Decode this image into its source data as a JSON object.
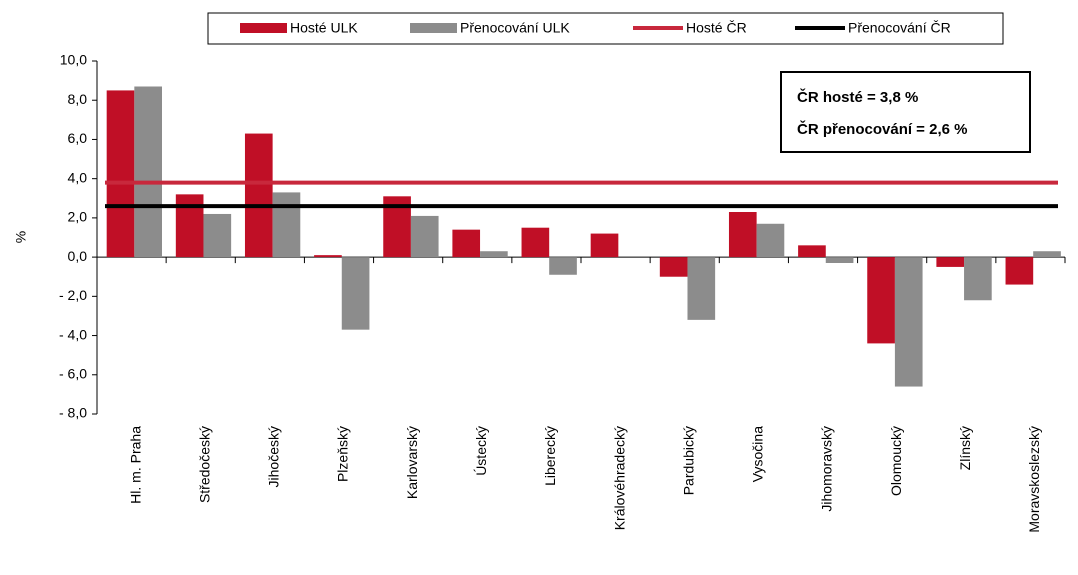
{
  "chart_data": {
    "type": "bar",
    "y_label": "%",
    "categories": [
      "Hl. m. Praha",
      "Středočeský",
      "Jihočeský",
      "Plzeňský",
      "Karlovarský",
      "Ústecký",
      "Liberecký",
      "Královéhradecký",
      "Pardubický",
      "Vysočina",
      "Jihomoravský",
      "Olomoucký",
      "Zlínský",
      "Moravskoslezský"
    ],
    "series": [
      {
        "name": "Hosté ULK",
        "color": "#c00f26",
        "values": [
          8.5,
          3.2,
          6.3,
          0.1,
          3.1,
          1.4,
          1.5,
          1.2,
          -1.0,
          2.3,
          0.6,
          -4.4,
          -0.5,
          -1.4
        ]
      },
      {
        "name": "Přenocování ULK",
        "color": "#8c8c8c",
        "values": [
          8.7,
          2.2,
          3.3,
          -3.7,
          2.1,
          0.3,
          -0.9,
          0.0,
          -3.2,
          1.7,
          -0.3,
          -6.6,
          -2.2,
          0.3
        ]
      }
    ],
    "reference_lines": [
      {
        "name": "Hosté ČR",
        "color": "#c8283c",
        "value": 3.8
      },
      {
        "name": "Přenocování ČR",
        "color": "#000000",
        "value": 2.6
      }
    ],
    "annotations": [
      {
        "text": "ČR hosté = 3,8 %",
        "color": "#c8283c"
      },
      {
        "text": "ČR přenocování = 2,6 %",
        "color": "#000000"
      }
    ],
    "ylim": [
      -8,
      10
    ],
    "yticks": [
      {
        "value": 10,
        "label": "10,0"
      },
      {
        "value": 8,
        "label": "8,0"
      },
      {
        "value": 6,
        "label": "6,0"
      },
      {
        "value": 4,
        "label": "4,0"
      },
      {
        "value": 2,
        "label": "2,0"
      },
      {
        "value": 0,
        "label": "0,0"
      },
      {
        "value": -2,
        "label": "- 2,0"
      },
      {
        "value": -4,
        "label": "- 4,0"
      },
      {
        "value": -6,
        "label": "- 6,0"
      },
      {
        "value": -8,
        "label": "- 8,0"
      }
    ]
  }
}
